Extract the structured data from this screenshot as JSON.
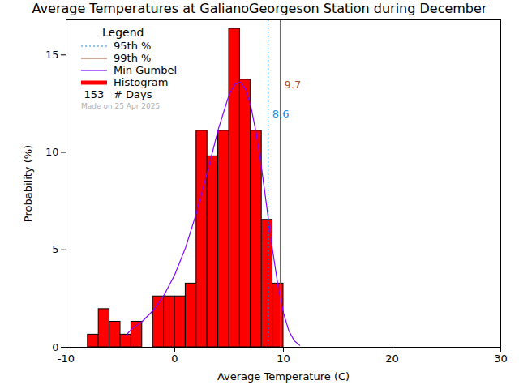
{
  "chart_data": {
    "type": "histogram",
    "title": "Average Temperatures at GalianoGeorgeson Station during December",
    "x_label": "Average Temperature (C)",
    "y_label": "Probability (%)",
    "xlim": [
      -10,
      30
    ],
    "xticks": [
      -10,
      0,
      10,
      20,
      30
    ],
    "ylim": [
      0,
      16.8
    ],
    "yticks": [
      0,
      5,
      10,
      15
    ],
    "legend_title": "Legend",
    "legend": "top-left",
    "name": "Histogram",
    "color": "#ff0000",
    "bins": [
      -8,
      -7,
      -6,
      -5,
      -4,
      -3,
      -2,
      -1,
      0,
      1,
      2,
      3,
      4,
      5,
      6,
      7,
      8,
      9,
      10
    ],
    "values": [
      0.65,
      1.96,
      1.31,
      0.65,
      1.31,
      0,
      2.61,
      2.61,
      2.61,
      3.27,
      11.11,
      9.8,
      11.11,
      16.34,
      13.73,
      11.11,
      6.54,
      3.27
    ],
    "series": [
      {
        "name": "Min Gumbel",
        "type": "line",
        "color": "#7f00ff",
        "x": [
          -4.5,
          -4,
          -3,
          -2,
          -1,
          0,
          1,
          2,
          3,
          4,
          5,
          5.5,
          6,
          6.5,
          7,
          7.5,
          8,
          8.5,
          9,
          9.5,
          10,
          10.5,
          11,
          11.5
        ],
        "values": [
          0.6,
          0.92,
          1.32,
          1.88,
          2.66,
          3.72,
          5.12,
          6.9,
          8.99,
          11.17,
          12.96,
          13.48,
          13.61,
          13.26,
          12.37,
          10.98,
          9.14,
          7.06,
          4.99,
          3.16,
          1.76,
          0.84,
          0.33,
          0.1
        ]
      }
    ],
    "vlines": [
      {
        "name": "95th %",
        "value": 8.6,
        "label": "8.6",
        "color": "#1f8fdf",
        "line_style": "dotted"
      },
      {
        "name": "99th %",
        "value": 9.7,
        "label": "9.7",
        "color": "#a0522d",
        "line_style": "solid"
      }
    ],
    "count": 153,
    "count_label": "# Days",
    "annotations": [
      "Made on 25 Apr 2025"
    ]
  }
}
